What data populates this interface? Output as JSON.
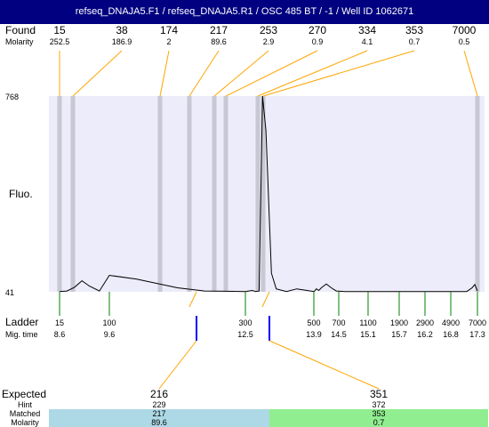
{
  "title": "refseq_DNAJA5.F1 / refseq_DNAJA5.R1 / OSC 485 BT / -1 / Well ID 1062671",
  "labels": {
    "found": "Found",
    "molarity": "Molarity",
    "y_top": "768",
    "y_bottom": "41",
    "fluo": "Fluo.",
    "ladder": "Ladder",
    "mig_time": "Mig. time",
    "expected": "Expected",
    "hint": "Hint",
    "matched": "Matched",
    "molarity_bottom": "Molarity"
  },
  "colors": {
    "title_bg": "#000080",
    "plot_bg": "#ececfa",
    "peak_band": "#c8c8d4",
    "leader": "#ffa500",
    "ladder_tick": "#008000",
    "expected_tick": "#0000ff",
    "match_cell_1": "#add8e6",
    "match_cell_2": "#90ee90"
  },
  "chart_data": {
    "type": "line",
    "title": "refseq_DNAJA5.F1 / refseq_DNAJA5.R1 / OSC 485 BT / -1 / Well ID 1062671",
    "ylabel": "Fluo.",
    "ylim": [
      41,
      768
    ],
    "grid": false,
    "found_peaks": [
      {
        "size": "15",
        "molarity": "252.5"
      },
      {
        "size": "38",
        "molarity": "186.9"
      },
      {
        "size": "174",
        "molarity": "2"
      },
      {
        "size": "217",
        "molarity": "89.6"
      },
      {
        "size": "253",
        "molarity": "2.9"
      },
      {
        "size": "270",
        "molarity": "0.9"
      },
      {
        "size": "334",
        "molarity": "4.1"
      },
      {
        "size": "353",
        "molarity": "0.7"
      },
      {
        "size": "7000",
        "molarity": "0.5"
      }
    ],
    "ladder": [
      {
        "size": "15",
        "mig_time": "8.6"
      },
      {
        "size": "100",
        "mig_time": "9.6"
      },
      {
        "size": "300",
        "mig_time": "12.5"
      },
      {
        "size": "500",
        "mig_time": "13.9"
      },
      {
        "size": "700",
        "mig_time": "14.5"
      },
      {
        "size": "1100",
        "mig_time": "15.1"
      },
      {
        "size": "1900",
        "mig_time": "15.7"
      },
      {
        "size": "2900",
        "mig_time": "16.2"
      },
      {
        "size": "4900",
        "mig_time": "16.8"
      },
      {
        "size": "7000",
        "mig_time": "17.3"
      }
    ],
    "expected": [
      {
        "size": "216",
        "hint": "229",
        "matched": "217",
        "molarity": "89.6"
      },
      {
        "size": "351",
        "hint": "372",
        "matched": "353",
        "molarity": "0.7"
      }
    ],
    "trace": {
      "x_ladder_index": [
        0,
        0.15,
        0.3,
        0.45,
        0.6,
        0.8,
        1.0,
        1.2,
        1.5,
        1.7,
        2.0,
        2.1,
        2.15,
        2.2,
        2.25,
        2.3,
        2.38,
        2.45,
        2.6,
        2.75,
        2.9,
        3.0,
        3.05,
        3.1,
        3.2,
        3.3,
        3.5,
        3.7,
        3.9,
        4.2,
        4.5,
        5.0,
        6.0,
        7.0,
        8.0,
        8.6,
        8.8,
        8.9,
        8.95,
        9.0
      ],
      "y": [
        42,
        44,
        58,
        82,
        62,
        44,
        102,
        88,
        56,
        44,
        42,
        46,
        42,
        44,
        768,
        640,
        110,
        52,
        42,
        52,
        46,
        42,
        46,
        52,
        46,
        56,
        70,
        56,
        44,
        42,
        42,
        42,
        42,
        42,
        42,
        42,
        56,
        68,
        56,
        44
      ]
    }
  }
}
